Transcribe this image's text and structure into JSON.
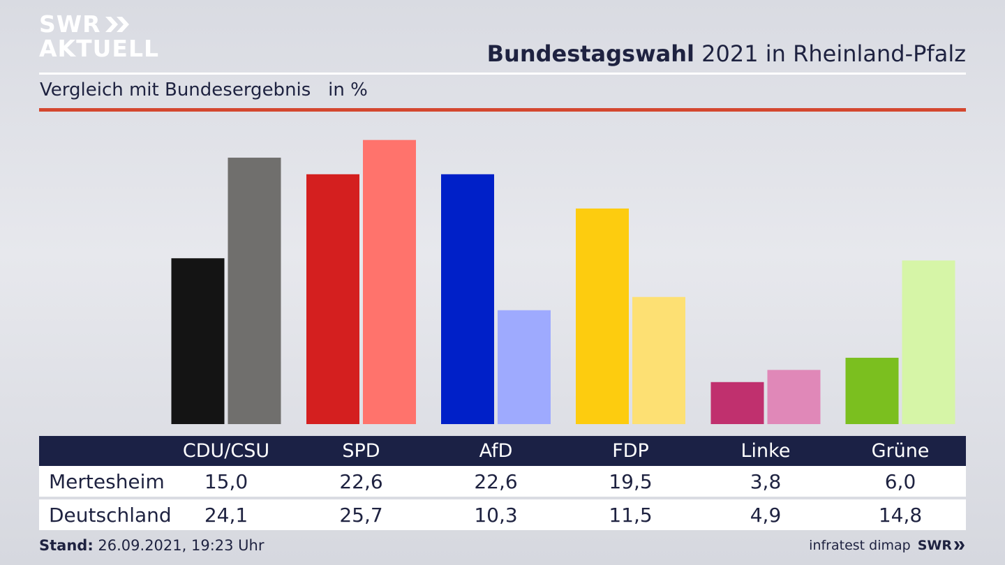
{
  "brand": {
    "line1": "SWR",
    "line2": "AKTUELL",
    "footer_logo": "SWR"
  },
  "header": {
    "title_bold": "Bundestagswahl",
    "title_rest": " 2021 in Rheinland-Pfalz",
    "subtitle": "Vergleich mit Bundesergebnis   in %"
  },
  "chart_data": {
    "type": "bar",
    "unit": "%",
    "categories": [
      "CDU/CSU",
      "SPD",
      "AfD",
      "FDP",
      "Linke",
      "Grüne"
    ],
    "series": [
      {
        "name": "Mertesheim",
        "values": [
          15.0,
          22.6,
          22.6,
          19.5,
          3.8,
          6.0
        ],
        "colors": [
          "#141414",
          "#d41f1f",
          "#0020c8",
          "#fdcc0f",
          "#c0306e",
          "#7bbf1f"
        ]
      },
      {
        "name": "Deutschland",
        "values": [
          24.1,
          25.7,
          10.3,
          11.5,
          4.9,
          14.8
        ],
        "colors": [
          "#706f6d",
          "#ff736c",
          "#9eaafe",
          "#fde073",
          "#e088b8",
          "#d6f5a7"
        ]
      }
    ],
    "ylim": [
      0,
      26.5
    ],
    "grid": false,
    "legend": "table-below"
  },
  "table": {
    "rows": [
      {
        "label": "Mertesheim",
        "values": [
          "15,0",
          "22,6",
          "22,6",
          "19,5",
          "3,8",
          "6,0"
        ]
      },
      {
        "label": "Deutschland",
        "values": [
          "24,1",
          "25,7",
          "10,3",
          "11,5",
          "4,9",
          "14,8"
        ]
      }
    ]
  },
  "footer": {
    "stand_label": "Stand:",
    "stand_value": " 26.09.2021, 19:23 Uhr",
    "source": "infratest dimap"
  },
  "colors": {
    "navy": "#1b2145",
    "accent_red": "#d4472f",
    "white": "#ffffff"
  }
}
